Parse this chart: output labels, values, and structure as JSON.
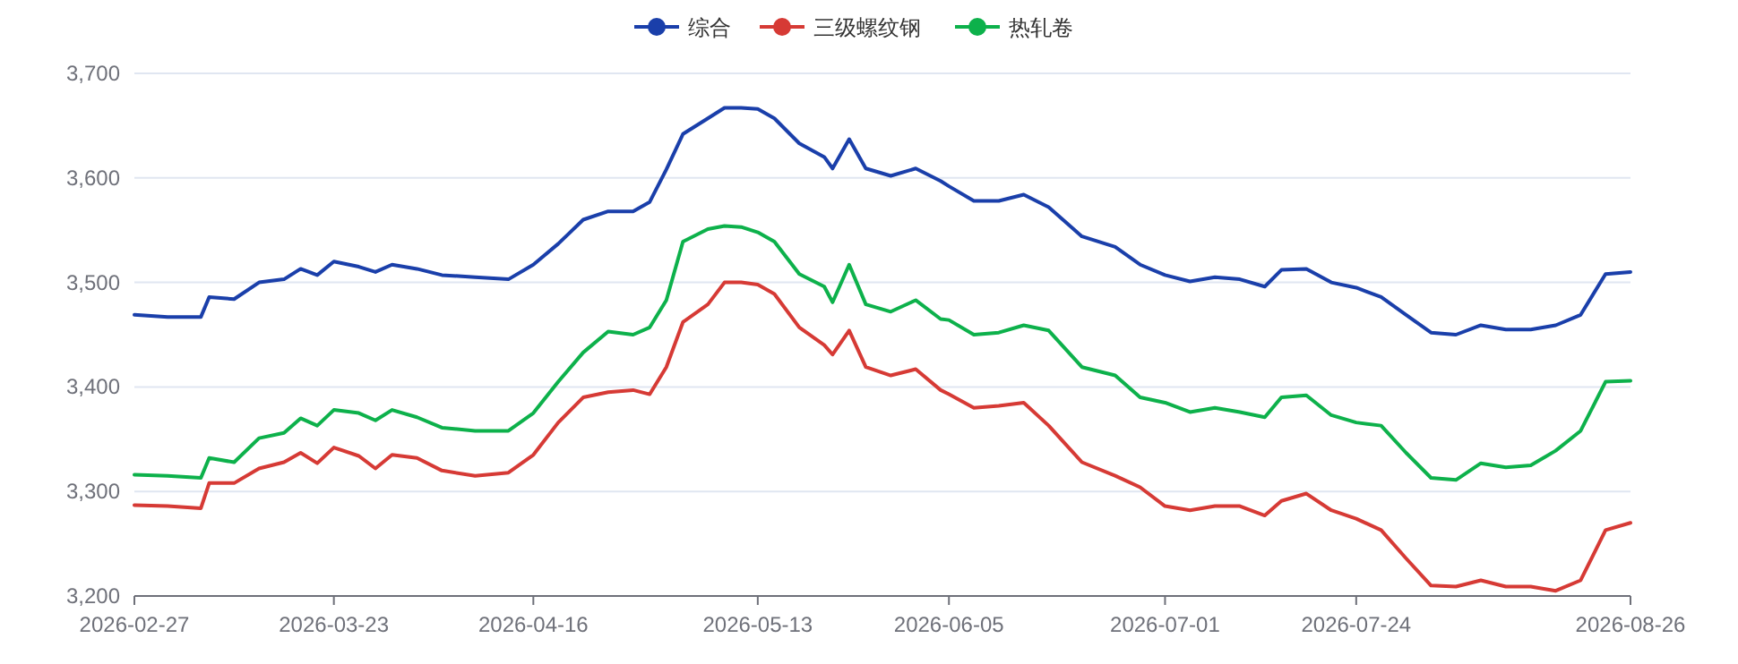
{
  "chart_data": {
    "type": "line",
    "x": [
      "2026-02-27",
      "2026-03-03",
      "2026-03-07",
      "2026-03-08",
      "2026-03-11",
      "2026-03-14",
      "2026-03-17",
      "2026-03-19",
      "2026-03-21",
      "2026-03-23",
      "2026-03-26",
      "2026-03-28",
      "2026-03-30",
      "2026-04-02",
      "2026-04-05",
      "2026-04-09",
      "2026-04-13",
      "2026-04-16",
      "2026-04-19",
      "2026-04-22",
      "2026-04-25",
      "2026-04-28",
      "2026-04-30",
      "2026-05-02",
      "2026-05-04",
      "2026-05-07",
      "2026-05-09",
      "2026-05-11",
      "2026-05-13",
      "2026-05-15",
      "2026-05-18",
      "2026-05-21",
      "2026-05-22",
      "2026-05-24",
      "2026-05-26",
      "2026-05-29",
      "2026-06-01",
      "2026-06-04",
      "2026-06-05",
      "2026-06-08",
      "2026-06-11",
      "2026-06-14",
      "2026-06-17",
      "2026-06-21",
      "2026-06-25",
      "2026-06-28",
      "2026-07-01",
      "2026-07-04",
      "2026-07-07",
      "2026-07-10",
      "2026-07-13",
      "2026-07-15",
      "2026-07-18",
      "2026-07-21",
      "2026-07-24",
      "2026-07-27",
      "2026-07-30",
      "2026-08-02",
      "2026-08-05",
      "2026-08-08",
      "2026-08-11",
      "2026-08-14",
      "2026-08-17",
      "2026-08-20",
      "2026-08-23",
      "2026-08-26"
    ],
    "series": [
      {
        "name": "综合",
        "color": "#1a3faa",
        "values": [
          3469,
          3467,
          3467,
          3486,
          3484,
          3500,
          3503,
          3513,
          3507,
          3520,
          3515,
          3510,
          3517,
          3513,
          3507,
          3505,
          3503,
          3517,
          3537,
          3560,
          3568,
          3568,
          3577,
          3608,
          3642,
          3657,
          3667,
          3667,
          3666,
          3657,
          3633,
          3620,
          3609,
          3637,
          3609,
          3602,
          3609,
          3597,
          3592,
          3578,
          3578,
          3584,
          3572,
          3544,
          3534,
          3517,
          3507,
          3501,
          3505,
          3503,
          3496,
          3512,
          3513,
          3500,
          3495,
          3486,
          3469,
          3452,
          3450,
          3459,
          3455,
          3455,
          3459,
          3469,
          3508,
          3510
        ]
      },
      {
        "name": "三级螺纹钢",
        "color": "#d63a35",
        "values": [
          3287,
          3286,
          3284,
          3308,
          3308,
          3322,
          3328,
          3337,
          3327,
          3342,
          3334,
          3322,
          3335,
          3332,
          3320,
          3315,
          3318,
          3335,
          3366,
          3390,
          3395,
          3397,
          3393,
          3419,
          3462,
          3479,
          3500,
          3500,
          3498,
          3489,
          3457,
          3440,
          3431,
          3454,
          3419,
          3411,
          3417,
          3397,
          3393,
          3380,
          3382,
          3385,
          3363,
          3328,
          3315,
          3304,
          3286,
          3282,
          3286,
          3286,
          3277,
          3291,
          3298,
          3282,
          3274,
          3263,
          3236,
          3210,
          3209,
          3215,
          3209,
          3209,
          3205,
          3215,
          3263,
          3270
        ]
      },
      {
        "name": "热轧卷",
        "color": "#0db14b",
        "values": [
          3316,
          3315,
          3313,
          3332,
          3328,
          3351,
          3356,
          3370,
          3363,
          3378,
          3375,
          3368,
          3378,
          3371,
          3361,
          3358,
          3358,
          3375,
          3405,
          3433,
          3453,
          3450,
          3457,
          3483,
          3539,
          3551,
          3554,
          3553,
          3548,
          3539,
          3508,
          3496,
          3481,
          3517,
          3479,
          3472,
          3483,
          3465,
          3464,
          3450,
          3452,
          3459,
          3454,
          3419,
          3411,
          3390,
          3385,
          3376,
          3380,
          3376,
          3371,
          3390,
          3392,
          3373,
          3366,
          3363,
          3337,
          3313,
          3311,
          3327,
          3323,
          3325,
          3339,
          3358,
          3405,
          3406
        ]
      }
    ],
    "xlim": [
      "2026-02-27",
      "2026-08-26"
    ],
    "xticks": [
      "2026-02-27",
      "2026-03-23",
      "2026-04-16",
      "2026-05-13",
      "2026-06-05",
      "2026-07-01",
      "2026-07-24",
      "2026-08-26"
    ],
    "ylim": [
      3200,
      3700
    ],
    "yticks": [
      {
        "value": 3200,
        "label": "3,200"
      },
      {
        "value": 3300,
        "label": "3,300"
      },
      {
        "value": 3400,
        "label": "3,400"
      },
      {
        "value": 3500,
        "label": "3,500"
      },
      {
        "value": 3600,
        "label": "3,600"
      },
      {
        "value": 3700,
        "label": "3,700"
      }
    ],
    "grid": "y",
    "legend": "top",
    "line_style": "solid"
  }
}
